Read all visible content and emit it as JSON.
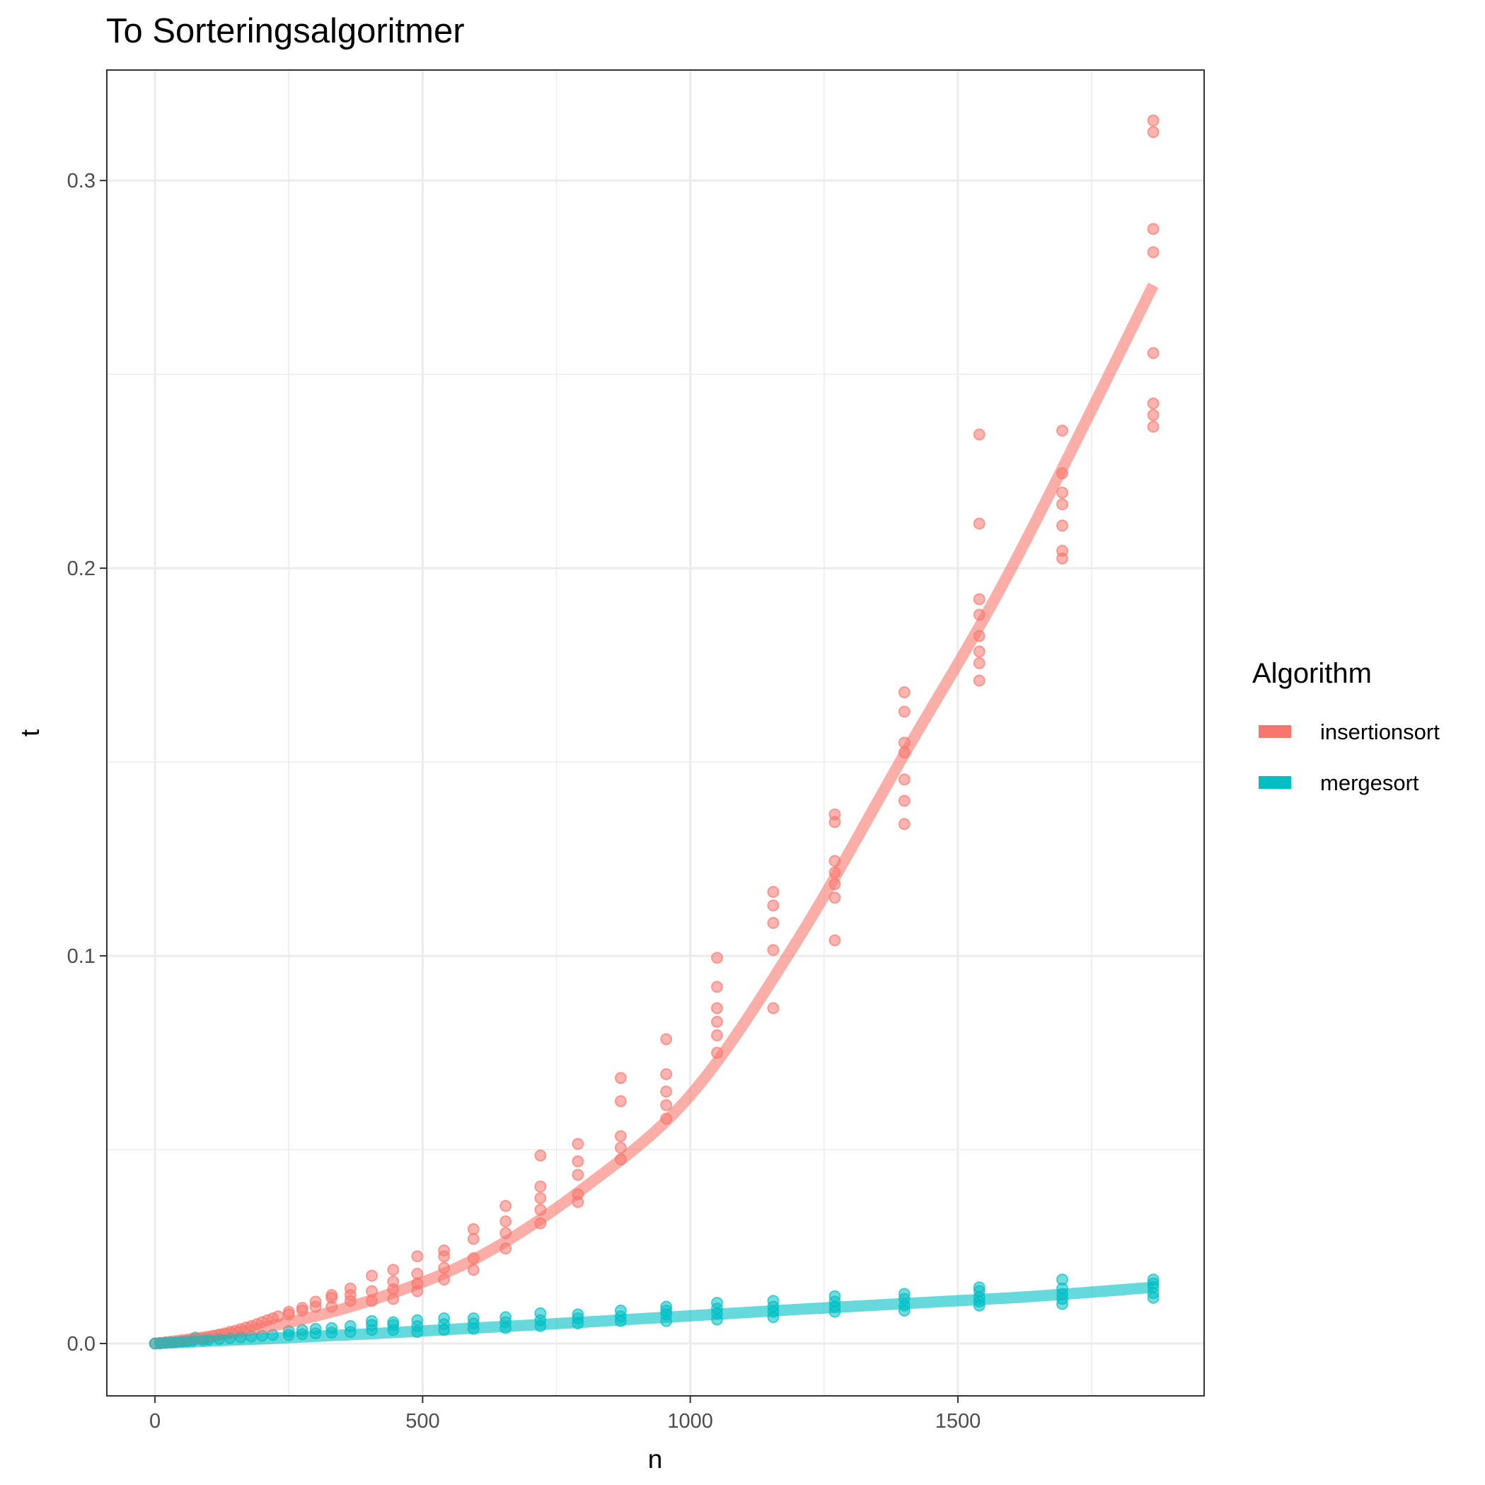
{
  "chart_data": {
    "type": "scatter",
    "title": "To Sorteringsalgoritmer",
    "xlabel": "n",
    "ylabel": "t",
    "xlim": [
      -90,
      1960
    ],
    "ylim": [
      -0.0135,
      0.3285
    ],
    "x_ticks": [
      0,
      500,
      1000,
      1500
    ],
    "x_tick_labels": [
      "0",
      "500",
      "1000",
      "1500"
    ],
    "y_ticks": [
      0.0,
      0.1,
      0.2,
      0.3
    ],
    "y_tick_labels": [
      "0.0",
      "0.1",
      "0.2",
      "0.3"
    ],
    "grid": true,
    "legend": {
      "title": "Algorithm",
      "position": "right"
    },
    "series": [
      {
        "name": "insertionsort",
        "color": "#F8766D",
        "points": [
          [
            0,
            0
          ],
          [
            10,
            0.0001
          ],
          [
            20,
            0.0002
          ],
          [
            30,
            0.0003
          ],
          [
            40,
            0.0004
          ],
          [
            50,
            0.0006
          ],
          [
            60,
            0.0008
          ],
          [
            70,
            0.001
          ],
          [
            80,
            0.0012
          ],
          [
            90,
            0.0014
          ],
          [
            100,
            0.0017
          ],
          [
            110,
            0.002
          ],
          [
            120,
            0.0023
          ],
          [
            130,
            0.0026
          ],
          [
            140,
            0.003
          ],
          [
            150,
            0.0033
          ],
          [
            160,
            0.0037
          ],
          [
            170,
            0.0041
          ],
          [
            180,
            0.0045
          ],
          [
            190,
            0.005
          ],
          [
            200,
            0.0055
          ],
          [
            210,
            0.006
          ],
          [
            220,
            0.0065
          ],
          [
            230,
            0.007
          ],
          [
            250,
            0.0075
          ],
          [
            250,
            0.0082
          ],
          [
            275,
            0.0085
          ],
          [
            275,
            0.0092
          ],
          [
            300,
            0.0095
          ],
          [
            300,
            0.0108
          ],
          [
            330,
            0.0095
          ],
          [
            330,
            0.0118
          ],
          [
            330,
            0.0125
          ],
          [
            365,
            0.011
          ],
          [
            365,
            0.0125
          ],
          [
            365,
            0.0142
          ],
          [
            405,
            0.011
          ],
          [
            405,
            0.0135
          ],
          [
            405,
            0.0175
          ],
          [
            445,
            0.0115
          ],
          [
            445,
            0.014
          ],
          [
            445,
            0.016
          ],
          [
            445,
            0.019
          ],
          [
            490,
            0.0135
          ],
          [
            490,
            0.0155
          ],
          [
            490,
            0.018
          ],
          [
            490,
            0.0225
          ],
          [
            540,
            0.0165
          ],
          [
            540,
            0.0195
          ],
          [
            540,
            0.0225
          ],
          [
            540,
            0.024
          ],
          [
            595,
            0.019
          ],
          [
            595,
            0.022
          ],
          [
            595,
            0.027
          ],
          [
            595,
            0.0295
          ],
          [
            655,
            0.0245
          ],
          [
            655,
            0.0285
          ],
          [
            655,
            0.0315
          ],
          [
            655,
            0.0355
          ],
          [
            720,
            0.031
          ],
          [
            720,
            0.0345
          ],
          [
            720,
            0.0375
          ],
          [
            720,
            0.0405
          ],
          [
            720,
            0.0485
          ],
          [
            790,
            0.0365
          ],
          [
            790,
            0.0385
          ],
          [
            790,
            0.0435
          ],
          [
            790,
            0.047
          ],
          [
            790,
            0.0515
          ],
          [
            870,
            0.0475
          ],
          [
            870,
            0.0505
          ],
          [
            870,
            0.0535
          ],
          [
            870,
            0.0625
          ],
          [
            870,
            0.0685
          ],
          [
            955,
            0.058
          ],
          [
            955,
            0.0615
          ],
          [
            955,
            0.065
          ],
          [
            955,
            0.0695
          ],
          [
            955,
            0.0785
          ],
          [
            1050,
            0.075
          ],
          [
            1050,
            0.0795
          ],
          [
            1050,
            0.083
          ],
          [
            1050,
            0.0865
          ],
          [
            1050,
            0.092
          ],
          [
            1050,
            0.0995
          ],
          [
            1155,
            0.0865
          ],
          [
            1155,
            0.1015
          ],
          [
            1155,
            0.1085
          ],
          [
            1155,
            0.113
          ],
          [
            1155,
            0.1165
          ],
          [
            1270,
            0.104
          ],
          [
            1270,
            0.115
          ],
          [
            1270,
            0.1185
          ],
          [
            1270,
            0.1215
          ],
          [
            1270,
            0.1245
          ],
          [
            1270,
            0.1345
          ],
          [
            1270,
            0.1365
          ],
          [
            1400,
            0.134
          ],
          [
            1400,
            0.14
          ],
          [
            1400,
            0.1455
          ],
          [
            1400,
            0.1525
          ],
          [
            1400,
            0.155
          ],
          [
            1400,
            0.163
          ],
          [
            1400,
            0.168
          ],
          [
            1540,
            0.171
          ],
          [
            1540,
            0.1755
          ],
          [
            1540,
            0.1785
          ],
          [
            1540,
            0.1825
          ],
          [
            1540,
            0.188
          ],
          [
            1540,
            0.192
          ],
          [
            1540,
            0.2115
          ],
          [
            1540,
            0.2345
          ],
          [
            1695,
            0.2025
          ],
          [
            1695,
            0.2045
          ],
          [
            1695,
            0.211
          ],
          [
            1695,
            0.2165
          ],
          [
            1695,
            0.2195
          ],
          [
            1695,
            0.2245
          ],
          [
            1695,
            0.2355
          ],
          [
            1865,
            0.2365
          ],
          [
            1865,
            0.2395
          ],
          [
            1865,
            0.2425
          ],
          [
            1865,
            0.2555
          ],
          [
            1865,
            0.2815
          ],
          [
            1865,
            0.2875
          ],
          [
            1865,
            0.3125
          ],
          [
            1865,
            0.3155
          ]
        ],
        "smooth": [
          [
            0,
            0
          ],
          [
            200,
            0.004
          ],
          [
            400,
            0.011
          ],
          [
            600,
            0.022
          ],
          [
            800,
            0.04
          ],
          [
            1000,
            0.064
          ],
          [
            1200,
            0.104
          ],
          [
            1400,
            0.152
          ],
          [
            1600,
            0.2
          ],
          [
            1865,
            0.273
          ]
        ]
      },
      {
        "name": "mergesort",
        "color": "#00BFC4",
        "points": [
          [
            0,
            0
          ],
          [
            10,
            0.0001
          ],
          [
            20,
            0.0002
          ],
          [
            30,
            0.0003
          ],
          [
            40,
            0.0004
          ],
          [
            50,
            0.0005
          ],
          [
            60,
            0.0006
          ],
          [
            70,
            0.0007
          ],
          [
            75,
            0.0015
          ],
          [
            90,
            0.0009
          ],
          [
            100,
            0.001
          ],
          [
            120,
            0.0012
          ],
          [
            140,
            0.0014
          ],
          [
            160,
            0.0016
          ],
          [
            180,
            0.0018
          ],
          [
            200,
            0.002
          ],
          [
            220,
            0.0022
          ],
          [
            250,
            0.0022
          ],
          [
            250,
            0.0032
          ],
          [
            275,
            0.0024
          ],
          [
            275,
            0.0035
          ],
          [
            300,
            0.0026
          ],
          [
            300,
            0.0038
          ],
          [
            330,
            0.0028
          ],
          [
            330,
            0.004
          ],
          [
            365,
            0.003
          ],
          [
            365,
            0.0045
          ],
          [
            405,
            0.0035
          ],
          [
            405,
            0.0048
          ],
          [
            405,
            0.0058
          ],
          [
            445,
            0.0035
          ],
          [
            445,
            0.0048
          ],
          [
            445,
            0.0055
          ],
          [
            490,
            0.003
          ],
          [
            490,
            0.0045
          ],
          [
            490,
            0.006
          ],
          [
            540,
            0.0035
          ],
          [
            540,
            0.005
          ],
          [
            540,
            0.0065
          ],
          [
            595,
            0.0038
          ],
          [
            595,
            0.0052
          ],
          [
            595,
            0.0065
          ],
          [
            655,
            0.004
          ],
          [
            655,
            0.0055
          ],
          [
            655,
            0.0068
          ],
          [
            720,
            0.0045
          ],
          [
            720,
            0.006
          ],
          [
            720,
            0.0078
          ],
          [
            790,
            0.0052
          ],
          [
            790,
            0.0065
          ],
          [
            790,
            0.0075
          ],
          [
            870,
            0.0058
          ],
          [
            870,
            0.007
          ],
          [
            870,
            0.0085
          ],
          [
            955,
            0.0058
          ],
          [
            955,
            0.0075
          ],
          [
            955,
            0.0085
          ],
          [
            955,
            0.0095
          ],
          [
            1050,
            0.0062
          ],
          [
            1050,
            0.0078
          ],
          [
            1050,
            0.009
          ],
          [
            1050,
            0.0105
          ],
          [
            1155,
            0.0068
          ],
          [
            1155,
            0.0082
          ],
          [
            1155,
            0.0095
          ],
          [
            1155,
            0.011
          ],
          [
            1270,
            0.0082
          ],
          [
            1270,
            0.0095
          ],
          [
            1270,
            0.0108
          ],
          [
            1270,
            0.0122
          ],
          [
            1400,
            0.0085
          ],
          [
            1400,
            0.0098
          ],
          [
            1400,
            0.0115
          ],
          [
            1400,
            0.0128
          ],
          [
            1540,
            0.0098
          ],
          [
            1540,
            0.0108
          ],
          [
            1540,
            0.012
          ],
          [
            1540,
            0.0135
          ],
          [
            1540,
            0.0145
          ],
          [
            1695,
            0.0102
          ],
          [
            1695,
            0.0115
          ],
          [
            1695,
            0.0128
          ],
          [
            1695,
            0.0142
          ],
          [
            1695,
            0.0165
          ],
          [
            1865,
            0.0118
          ],
          [
            1865,
            0.013
          ],
          [
            1865,
            0.0145
          ],
          [
            1865,
            0.0155
          ],
          [
            1865,
            0.0165
          ]
        ],
        "smooth": [
          [
            0,
            0
          ],
          [
            400,
            0.0025
          ],
          [
            800,
            0.0055
          ],
          [
            1200,
            0.0088
          ],
          [
            1600,
            0.0118
          ],
          [
            1865,
            0.0145
          ]
        ]
      }
    ]
  }
}
